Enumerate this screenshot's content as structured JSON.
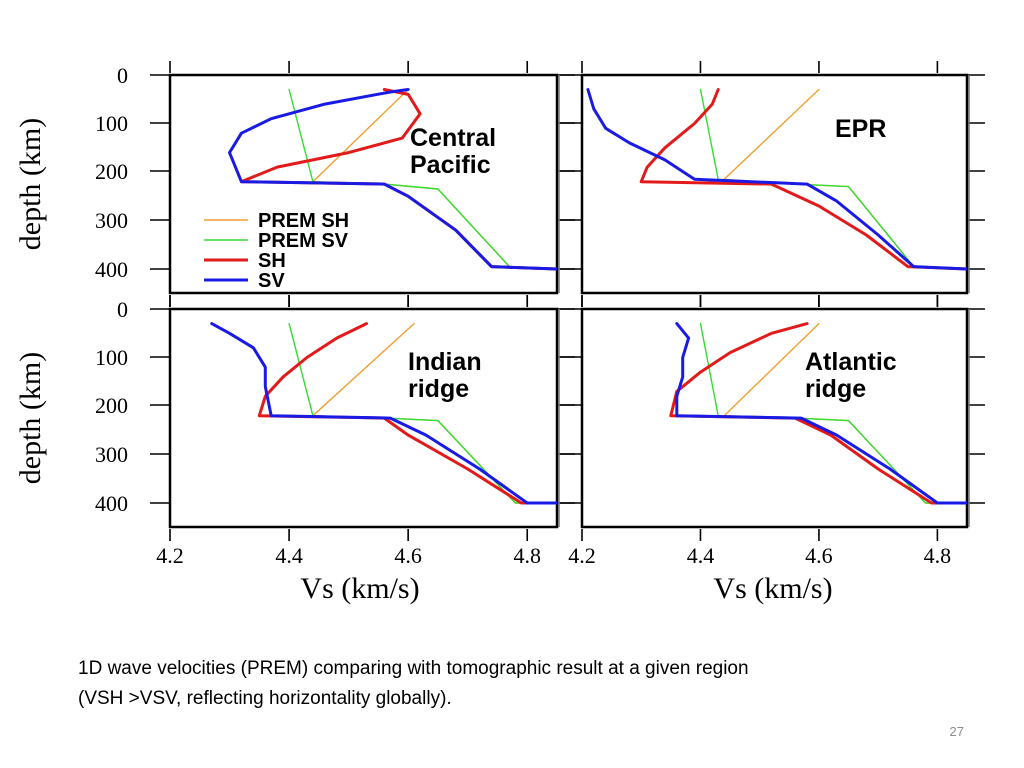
{
  "slide": {
    "caption_lines": [
      "1D wave velocities (PREM) comparing with tomographic result at a given region",
      "(VSH >VSV, reflecting horizontality globally)."
    ],
    "slide_number": "27"
  },
  "colors": {
    "prem_sh": "#f0a030",
    "prem_sv": "#33dd33",
    "sh": "#e31a1a",
    "sv": "#1a1ae6",
    "axis": "#000000"
  },
  "chart_data": [
    {
      "type": "line",
      "title": "Central Pacific",
      "title_lines": [
        "Central",
        "Pacific"
      ],
      "xlabel": "Vs (km/s)",
      "ylabel": "depth (km)",
      "xlim": [
        4.2,
        4.85
      ],
      "ylim": [
        400,
        0
      ],
      "xticks": [
        "4.2",
        "4.4",
        "4.6",
        "4.8"
      ],
      "yticks": [
        "0",
        "100",
        "200",
        "300",
        "400"
      ],
      "legend": [
        "PREM SH",
        "PREM SV",
        "SH",
        "SV"
      ],
      "legend_position": "bottom-left",
      "series": [
        {
          "name": "PREM SH",
          "x": [
            4.6,
            4.44,
            4.56,
            4.65,
            4.77,
            4.85
          ],
          "y": [
            30,
            220,
            225,
            235,
            395,
            400
          ]
        },
        {
          "name": "PREM SV",
          "x": [
            4.4,
            4.44,
            4.56,
            4.65,
            4.77,
            4.85
          ],
          "y": [
            30,
            220,
            225,
            235,
            395,
            400
          ]
        },
        {
          "name": "SH",
          "x": [
            4.56,
            4.6,
            4.62,
            4.59,
            4.5,
            4.38,
            4.32,
            4.56,
            4.6,
            4.68,
            4.74,
            4.85
          ],
          "y": [
            30,
            40,
            80,
            130,
            160,
            190,
            220,
            225,
            250,
            320,
            395,
            400
          ]
        },
        {
          "name": "SV",
          "x": [
            4.6,
            4.57,
            4.46,
            4.37,
            4.32,
            4.3,
            4.32,
            4.56,
            4.6,
            4.68,
            4.74,
            4.85
          ],
          "y": [
            30,
            35,
            60,
            90,
            120,
            160,
            220,
            225,
            250,
            320,
            395,
            400
          ]
        }
      ]
    },
    {
      "type": "line",
      "title": "EPR",
      "title_lines": [
        "EPR"
      ],
      "xlabel": "Vs (km/s)",
      "ylabel": "depth (km)",
      "xlim": [
        4.2,
        4.85
      ],
      "ylim": [
        400,
        0
      ],
      "xticks": [
        "4.2",
        "4.4",
        "4.6",
        "4.8"
      ],
      "yticks": [],
      "legend": [],
      "series": [
        {
          "name": "PREM SH",
          "x": [
            4.6,
            4.44,
            4.56,
            4.65,
            4.76,
            4.85
          ],
          "y": [
            30,
            215,
            225,
            230,
            395,
            400
          ]
        },
        {
          "name": "PREM SV",
          "x": [
            4.4,
            4.43,
            4.56,
            4.65,
            4.76,
            4.85
          ],
          "y": [
            30,
            215,
            225,
            230,
            395,
            400
          ]
        },
        {
          "name": "SH",
          "x": [
            4.43,
            4.42,
            4.39,
            4.34,
            4.31,
            4.3,
            4.52,
            4.6,
            4.68,
            4.75,
            4.85
          ],
          "y": [
            30,
            60,
            100,
            150,
            190,
            220,
            225,
            270,
            330,
            395,
            400
          ]
        },
        {
          "name": "SV",
          "x": [
            4.21,
            4.22,
            4.24,
            4.28,
            4.34,
            4.39,
            4.58,
            4.63,
            4.7,
            4.76,
            4.85
          ],
          "y": [
            30,
            70,
            110,
            140,
            175,
            215,
            225,
            260,
            330,
            395,
            400
          ]
        }
      ]
    },
    {
      "type": "line",
      "title": "Indian ridge",
      "title_lines": [
        "Indian",
        "ridge"
      ],
      "xlabel": "Vs (km/s)",
      "ylabel": "depth (km)",
      "xlim": [
        4.2,
        4.85
      ],
      "ylim": [
        400,
        0
      ],
      "xticks": [
        "4.2",
        "4.4",
        "4.6",
        "4.8"
      ],
      "yticks": [
        "0",
        "100",
        "200",
        "300",
        "400"
      ],
      "legend": [],
      "series": [
        {
          "name": "PREM SH",
          "x": [
            4.61,
            4.44,
            4.56,
            4.65,
            4.78,
            4.85
          ],
          "y": [
            30,
            220,
            225,
            230,
            400,
            400
          ]
        },
        {
          "name": "PREM SV",
          "x": [
            4.4,
            4.44,
            4.56,
            4.65,
            4.78,
            4.85
          ],
          "y": [
            30,
            220,
            225,
            230,
            400,
            400
          ]
        },
        {
          "name": "SH",
          "x": [
            4.53,
            4.48,
            4.43,
            4.39,
            4.36,
            4.35,
            4.56,
            4.6,
            4.7,
            4.79,
            4.85
          ],
          "y": [
            30,
            60,
            100,
            140,
            180,
            220,
            225,
            260,
            330,
            400,
            400
          ]
        },
        {
          "name": "SV",
          "x": [
            4.27,
            4.3,
            4.34,
            4.36,
            4.36,
            4.37,
            4.57,
            4.63,
            4.72,
            4.8,
            4.85
          ],
          "y": [
            30,
            50,
            80,
            120,
            160,
            220,
            225,
            260,
            330,
            400,
            400
          ]
        }
      ]
    },
    {
      "type": "line",
      "title": "Atlantic ridge",
      "title_lines": [
        "Atlantic",
        "ridge"
      ],
      "xlabel": "Vs (km/s)",
      "ylabel": "depth (km)",
      "xlim": [
        4.2,
        4.85
      ],
      "ylim": [
        400,
        0
      ],
      "xticks": [
        "4.2",
        "4.4",
        "4.6",
        "4.8"
      ],
      "yticks": [],
      "legend": [],
      "series": [
        {
          "name": "PREM SH",
          "x": [
            4.6,
            4.44,
            4.56,
            4.65,
            4.78,
            4.85
          ],
          "y": [
            30,
            220,
            225,
            230,
            400,
            400
          ]
        },
        {
          "name": "PREM SV",
          "x": [
            4.4,
            4.43,
            4.56,
            4.65,
            4.78,
            4.85
          ],
          "y": [
            30,
            220,
            225,
            230,
            400,
            400
          ]
        },
        {
          "name": "SH",
          "x": [
            4.58,
            4.52,
            4.45,
            4.4,
            4.36,
            4.35,
            4.56,
            4.62,
            4.7,
            4.79,
            4.85
          ],
          "y": [
            30,
            50,
            90,
            130,
            170,
            220,
            225,
            260,
            330,
            400,
            400
          ]
        },
        {
          "name": "SV",
          "x": [
            4.36,
            4.38,
            4.37,
            4.37,
            4.36,
            4.36,
            4.57,
            4.63,
            4.72,
            4.8,
            4.85
          ],
          "y": [
            30,
            60,
            100,
            140,
            180,
            220,
            225,
            260,
            330,
            400,
            400
          ]
        }
      ]
    }
  ]
}
